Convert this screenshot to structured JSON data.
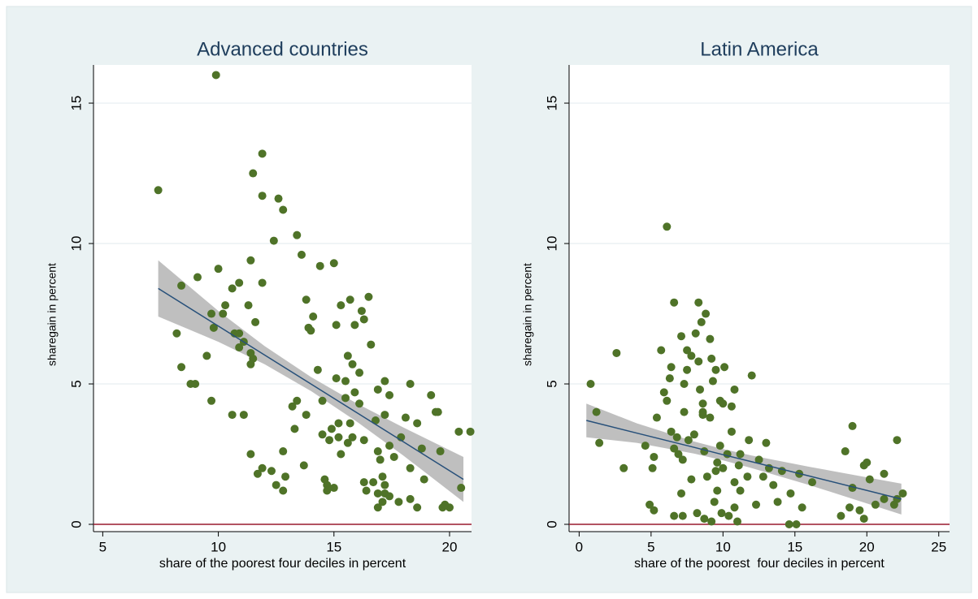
{
  "chart_data": [
    {
      "type": "scatter",
      "title": "Advanced countries",
      "x_label": "share of the poorest four deciles in percent",
      "y_label": "sharegain in percent",
      "xlim": [
        4.6,
        20.95
      ],
      "ylim": [
        -0.26,
        16.36
      ],
      "xticks": [
        5,
        10,
        15,
        20
      ],
      "yticks": [
        0,
        5,
        10,
        15
      ],
      "grid": true,
      "color": "#4f7328",
      "x": [
        7.4,
        9.9,
        11.9,
        11.5,
        11.9,
        12.6,
        12.8,
        13.4,
        12.4,
        13.6,
        10,
        11.4,
        14.4,
        15,
        9.1,
        11.9,
        10.9,
        8.4,
        10.6,
        16.5,
        13.8,
        15.7,
        15.3,
        10.3,
        11.3,
        16.2,
        9.7,
        10.2,
        14.1,
        16.3,
        11.6,
        15.9,
        15.1,
        9.8,
        13.9,
        14,
        10.7,
        8.2,
        10.9,
        11.1,
        16.6,
        10.9,
        11.4,
        15.6,
        9.5,
        11.5,
        15.8,
        11.4,
        8.4,
        14.3,
        16.1,
        15.1,
        15.5,
        17.2,
        18.3,
        8.8,
        9,
        16.9,
        17.4,
        19.2,
        15.9,
        15.5,
        9.7,
        14.5,
        13.4,
        13.2,
        16.1,
        19.5,
        19.4,
        17.2,
        10.6,
        11.1,
        13.8,
        18.1,
        15.2,
        16.8,
        18.6,
        15.7,
        14.9,
        20.4,
        20.9,
        17.9,
        14.5,
        15.2,
        15.8,
        16.3,
        13.3,
        14.8,
        15.6,
        17.4,
        16.9,
        18.8,
        19.6,
        12.8,
        11.4,
        15.3,
        17,
        17.6,
        18.3,
        13.7,
        11.9,
        12.3,
        11.7,
        17.1,
        14.6,
        18.9,
        12.9,
        16.3,
        16.7,
        17.2,
        14.7,
        15,
        12.5,
        12.8,
        14.7,
        16.4,
        16.9,
        17.2,
        17.4,
        18.3,
        20.5,
        17.1,
        18.6,
        19.7,
        20,
        19.8,
        16.9,
        17.8
      ],
      "values": [
        11.9,
        16,
        13.2,
        12.5,
        11.7,
        11.6,
        11.2,
        10.3,
        10.1,
        9.6,
        9.1,
        9.4,
        9.2,
        9.3,
        8.8,
        8.6,
        8.6,
        8.5,
        8.4,
        8.1,
        8,
        8,
        7.8,
        7.8,
        7.8,
        7.6,
        7.5,
        7.5,
        7.4,
        7.3,
        7.2,
        7.1,
        7.1,
        7,
        7,
        6.9,
        6.8,
        6.8,
        6.8,
        6.5,
        6.4,
        6.3,
        6.1,
        6,
        6,
        5.9,
        5.7,
        5.7,
        5.6,
        5.5,
        5.4,
        5.2,
        5.1,
        5.1,
        5,
        5,
        5,
        4.8,
        4.6,
        4.6,
        4.7,
        4.5,
        4.4,
        4.4,
        4.4,
        4.2,
        4.3,
        4,
        4,
        3.9,
        3.9,
        3.9,
        3.9,
        3.8,
        3.6,
        3.7,
        3.6,
        3.6,
        3.4,
        3.3,
        3.3,
        3.1,
        3.2,
        3.1,
        3.1,
        3,
        3.4,
        3,
        2.9,
        2.8,
        2.6,
        2.7,
        2.6,
        2.6,
        2.5,
        2.5,
        2.3,
        2.4,
        2,
        2.1,
        2,
        1.9,
        1.8,
        1.7,
        1.6,
        1.6,
        1.7,
        1.5,
        1.5,
        1.4,
        1.4,
        1.3,
        1.4,
        1.2,
        1.2,
        1.2,
        1.1,
        1.1,
        1,
        0.9,
        1.3,
        0.8,
        0.6,
        0.6,
        0.6,
        0.7,
        0.6,
        0.8
      ],
      "fit": {
        "x": [
          7.4,
          10,
          12,
          14,
          16,
          18,
          20.6
        ],
        "values": [
          8.4,
          7.06,
          6.03,
          5.0,
          3.97,
          2.94,
          1.6
        ],
        "upper": [
          9.4,
          7.6,
          6.35,
          5.25,
          4.3,
          3.45,
          2.4
        ],
        "lower": [
          7.4,
          6.5,
          5.7,
          4.75,
          3.65,
          2.45,
          0.8
        ],
        "color": "#27507a",
        "band_color": "#b4b4b4"
      },
      "reference_line": 0,
      "reference_color": "#9b1b30"
    },
    {
      "type": "scatter",
      "title": "Latin America",
      "x_label": "share of the poorest  four deciles in percent",
      "y_label": "sharegain in percent",
      "xlim": [
        -0.7,
        25.75
      ],
      "ylim": [
        -0.26,
        16.36
      ],
      "xticks": [
        0,
        5,
        10,
        15,
        20,
        25
      ],
      "yticks": [
        0,
        5,
        10,
        15
      ],
      "grid": true,
      "color": "#4f7328",
      "x": [
        6.1,
        6.6,
        8.3,
        8.8,
        8.5,
        8.1,
        7.1,
        9.1,
        2.6,
        5.7,
        7.5,
        7.8,
        9.2,
        8.3,
        10.1,
        7.5,
        6.4,
        9.5,
        12,
        6.3,
        0.8,
        7.3,
        9.3,
        10.8,
        8.4,
        5.9,
        9.8,
        6.1,
        10,
        8.6,
        10.6,
        7.3,
        1.2,
        8.6,
        9.1,
        8.6,
        5.4,
        19,
        10.6,
        6.4,
        8,
        6.8,
        22.1,
        7.6,
        11.8,
        13,
        9.8,
        4.6,
        1.4,
        6.6,
        8.7,
        18.5,
        10.3,
        11.2,
        5.2,
        6.9,
        12.5,
        7.2,
        20,
        19.8,
        9.6,
        11.1,
        13.2,
        3.1,
        5.1,
        10,
        21.2,
        14.1,
        15.3,
        9.5,
        11.7,
        12.8,
        7.8,
        8.9,
        16.2,
        13.5,
        10.8,
        20.2,
        19,
        22.5,
        22.1,
        11.2,
        14.7,
        7.1,
        9.6,
        21.2,
        20.6,
        13.8,
        12.3,
        4.9,
        5.2,
        9.4,
        10.8,
        15.5,
        18.8,
        19.5,
        21.9,
        8.2,
        7.2,
        6.6,
        9.9,
        10.4,
        18.2,
        19.8,
        8.7,
        11,
        14.6,
        15.1,
        9.2
      ],
      "values": [
        10.6,
        7.9,
        7.9,
        7.5,
        7.2,
        6.8,
        6.7,
        6.6,
        6.1,
        6.2,
        6.2,
        6,
        5.9,
        5.8,
        5.6,
        5.5,
        5.6,
        5.5,
        5.3,
        5.2,
        5,
        5,
        5.1,
        4.8,
        4.8,
        4.7,
        4.4,
        4.4,
        4.3,
        4.3,
        4.2,
        4,
        4,
        4,
        3.8,
        3.9,
        3.8,
        3.5,
        3.3,
        3.3,
        3.2,
        3.1,
        3,
        3,
        3,
        2.9,
        2.8,
        2.8,
        2.9,
        2.7,
        2.6,
        2.6,
        2.5,
        2.5,
        2.4,
        2.5,
        2.3,
        2.3,
        2.2,
        2.1,
        2.2,
        2.1,
        2,
        2,
        2,
        2,
        1.8,
        1.9,
        1.8,
        1.9,
        1.7,
        1.7,
        1.6,
        1.7,
        1.5,
        1.4,
        1.5,
        1.6,
        1.3,
        1.1,
        0.9,
        1.2,
        1.1,
        1.1,
        1.2,
        0.9,
        0.7,
        0.8,
        0.7,
        0.7,
        0.5,
        0.8,
        0.6,
        0.6,
        0.6,
        0.5,
        0.7,
        0.4,
        0.3,
        0.3,
        0.4,
        0.3,
        0.3,
        0.2,
        0.2,
        0.1,
        0,
        0,
        0.1
      ],
      "fit": {
        "x": [
          0.5,
          4,
          8,
          10,
          12,
          16,
          22.4
        ],
        "values": [
          3.7,
          3.25,
          2.74,
          2.48,
          2.23,
          1.72,
          0.9
        ],
        "upper": [
          4.3,
          3.6,
          2.95,
          2.68,
          2.45,
          2.05,
          1.45
        ],
        "lower": [
          3.1,
          2.9,
          2.52,
          2.28,
          2.0,
          1.4,
          0.35
        ],
        "color": "#27507a",
        "band_color": "#b4b4b4"
      },
      "reference_line": 0,
      "reference_color": "#9b1b30"
    }
  ]
}
